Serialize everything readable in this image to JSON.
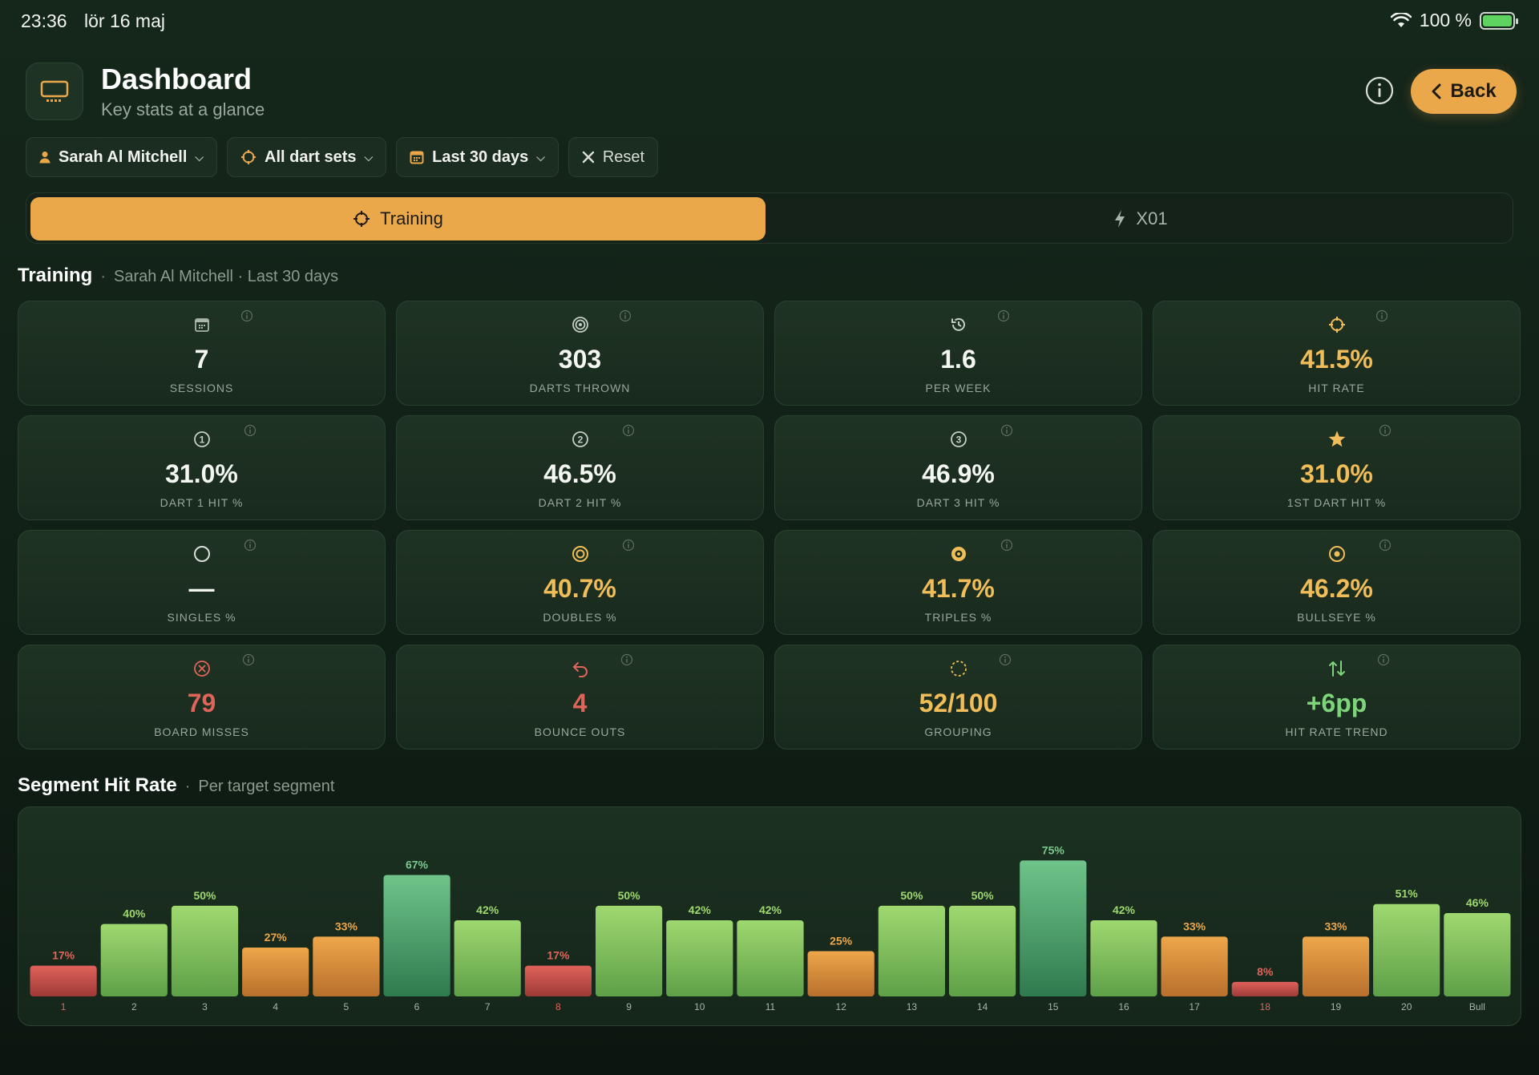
{
  "status_bar": {
    "time": "23:36",
    "date": "lör 16 maj",
    "battery": "100 %"
  },
  "header": {
    "title": "Dashboard",
    "subtitle": "Key stats at a glance",
    "back_label": "Back",
    "icon": "display-icon"
  },
  "filters": {
    "player": "Sarah Al Mitchell",
    "dart_sets": "All dart sets",
    "period": "Last 30 days",
    "reset": "Reset"
  },
  "tabs": [
    {
      "label": "Training",
      "active": true
    },
    {
      "label": "X01",
      "active": false
    }
  ],
  "training": {
    "title": "Training",
    "separator": "·",
    "subtitle": "Sarah Al Mitchell · Last 30 days"
  },
  "stats": [
    {
      "icon": "calendar-icon",
      "value": "7",
      "label": "SESSIONS",
      "tone": "default"
    },
    {
      "icon": "target-icon",
      "value": "303",
      "label": "DARTS THROWN",
      "tone": "default"
    },
    {
      "icon": "history-icon",
      "value": "1.6",
      "label": "PER WEEK",
      "tone": "default"
    },
    {
      "icon": "crosshair-icon",
      "value": "41.5%",
      "label": "HIT RATE",
      "tone": "amber"
    },
    {
      "icon": "circle-one-icon",
      "value": "31.0%",
      "label": "DART 1 HIT %",
      "tone": "default"
    },
    {
      "icon": "circle-two-icon",
      "value": "46.5%",
      "label": "DART 2 HIT %",
      "tone": "default"
    },
    {
      "icon": "circle-three-icon",
      "value": "46.9%",
      "label": "DART 3 HIT %",
      "tone": "default"
    },
    {
      "icon": "star-icon",
      "value": "31.0%",
      "label": "1ST DART HIT %",
      "tone": "amber"
    },
    {
      "icon": "circle-icon",
      "value": "—",
      "label": "SINGLES %",
      "tone": "default"
    },
    {
      "icon": "double-ring-icon",
      "value": "40.7%",
      "label": "DOUBLES %",
      "tone": "amber"
    },
    {
      "icon": "triple-ring-icon",
      "value": "41.7%",
      "label": "TRIPLES %",
      "tone": "amber"
    },
    {
      "icon": "bullseye-icon",
      "value": "46.2%",
      "label": "BULLSEYE %",
      "tone": "amber"
    },
    {
      "icon": "x-circle-icon",
      "value": "79",
      "label": "BOARD MISSES",
      "tone": "red"
    },
    {
      "icon": "undo-arrow-icon",
      "value": "4",
      "label": "BOUNCE OUTS",
      "tone": "red"
    },
    {
      "icon": "dashed-circle-icon",
      "value": "52/100",
      "label": "GROUPING",
      "tone": "amber"
    },
    {
      "icon": "up-down-arrows-icon",
      "value": "+6pp",
      "label": "HIT RATE TREND",
      "tone": "green"
    }
  ],
  "segment_section": {
    "title": "Segment Hit Rate",
    "separator": "·",
    "subtitle": "Per target segment"
  },
  "colors": {
    "accent": "#eaa84b",
    "red": "#e0645a",
    "green": "#7ed47a",
    "amber": "#f0bd58"
  },
  "chart_data": {
    "type": "bar",
    "categories": [
      "1",
      "2",
      "3",
      "4",
      "5",
      "6",
      "7",
      "8",
      "9",
      "10",
      "11",
      "12",
      "13",
      "14",
      "15",
      "16",
      "17",
      "18",
      "19",
      "20",
      "Bull"
    ],
    "values": [
      17,
      40,
      50,
      27,
      33,
      67,
      42,
      17,
      50,
      42,
      42,
      25,
      50,
      50,
      75,
      42,
      33,
      8,
      33,
      51,
      46
    ],
    "value_labels": [
      "17%",
      "40%",
      "50%",
      "27%",
      "33%",
      "67%",
      "42%",
      "17%",
      "50%",
      "42%",
      "42%",
      "25%",
      "50%",
      "50%",
      "75%",
      "42%",
      "33%",
      "8%",
      "33%",
      "51%",
      "46%"
    ],
    "ylim": [
      0,
      100
    ],
    "grid": false,
    "legend": "none"
  }
}
